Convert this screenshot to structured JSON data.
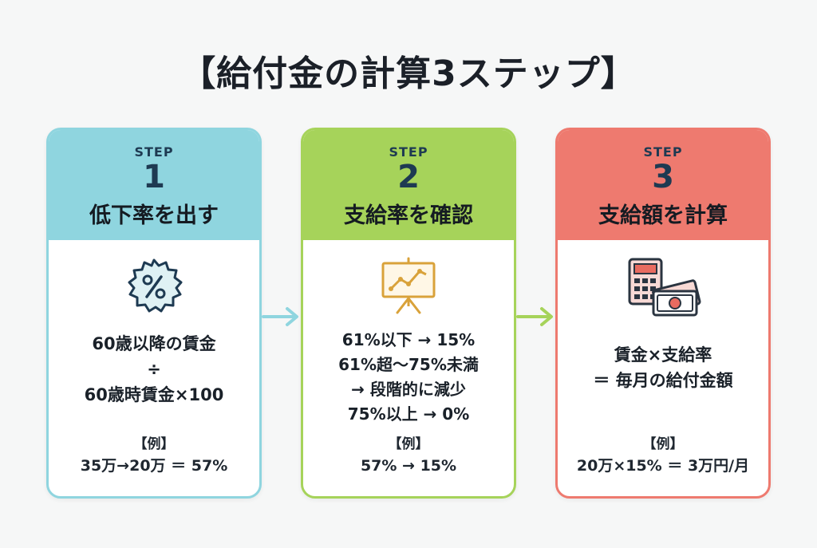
{
  "title": "【給付金の計算3ステップ】",
  "steps": [
    {
      "label": "STEP",
      "number": "1",
      "title": "低下率を出す",
      "icon": "percent-badge-icon",
      "lines": [
        "60歳以降の賃金",
        "÷",
        "60歳時賃金×100"
      ],
      "example_label": "【例】",
      "example_value": "35万→20万 ＝ 57%"
    },
    {
      "label": "STEP",
      "number": "2",
      "title": "支給率を確認",
      "icon": "chart-presentation-icon",
      "lines": [
        "61%以下 → 15%",
        "61%超〜75%未満",
        "→ 段階的に減少",
        "75%以上 → 0%"
      ],
      "example_label": "【例】",
      "example_value": "57% → 15%"
    },
    {
      "label": "STEP",
      "number": "3",
      "title": "支給額を計算",
      "icon": "calculator-money-icon",
      "lines": [
        "賃金×支給率",
        "＝ 毎月の給付金額"
      ],
      "example_label": "【例】",
      "example_value": "20万×15% ＝ 3万円/月"
    }
  ],
  "colors": {
    "step1": "#8fd5df",
    "step2": "#a6d35a",
    "step3": "#ee7a6f"
  }
}
